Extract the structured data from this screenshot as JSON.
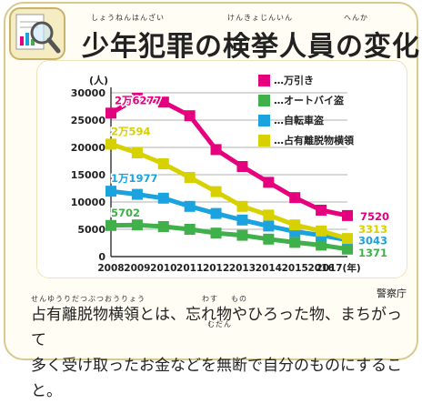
{
  "header": {
    "title": "少年犯罪の検挙人員の変化",
    "ruby_title_a": "しょうねんはんざい",
    "ruby_title_b": "けんきょじんいん",
    "ruby_title_c": "へんか",
    "icon": "magnifier-chart-icon"
  },
  "chart_data": {
    "type": "line",
    "title": "",
    "ylabel": "(人)",
    "xlabel": "(年)",
    "x": [
      2008,
      2009,
      2010,
      2011,
      2012,
      2013,
      2014,
      2015,
      2016,
      2017
    ],
    "x_last_label": "2017(年)",
    "ylim": [
      0,
      30000
    ],
    "yticks": [
      0,
      5000,
      10000,
      15000,
      20000,
      25000,
      30000
    ],
    "grid": true,
    "legend_position": "top-right",
    "source": "警察庁",
    "series": [
      {
        "name": "…万引き",
        "color": "#e5007e",
        "values": [
          26277,
          29000,
          28300,
          25800,
          19600,
          16500,
          13600,
          10800,
          8500,
          7520
        ],
        "start_label": "2万6277",
        "end_label": "7520"
      },
      {
        "name": "…オートバイ盗",
        "color": "#3fb04a",
        "values": [
          5702,
          5800,
          5500,
          5000,
          4300,
          3900,
          3200,
          2600,
          2100,
          1371
        ],
        "start_label": "5702",
        "end_label": "1371"
      },
      {
        "name": "…自転車盗",
        "color": "#1aa3de",
        "values": [
          11977,
          11400,
          10700,
          9200,
          7900,
          6700,
          5600,
          4600,
          3900,
          3043
        ],
        "start_label": "1万1977",
        "end_label": "3043"
      },
      {
        "name": "…占有離脱物横領",
        "color": "#d8d100",
        "values": [
          20594,
          19000,
          17000,
          14500,
          11900,
          9200,
          7600,
          5800,
          4700,
          3313
        ],
        "start_label": "2万594",
        "end_label": "3313"
      }
    ]
  },
  "footnote": {
    "line1": "占有離脱物横領とは、忘れ物やひろった物、まちがって",
    "line2": "多く受け取ったお金などを無断で自分のものにすること。",
    "ruby_senyu": "せんゆうりだつぶつおうりょう",
    "ruby_wasu": "わす",
    "ruby_mono": "もの",
    "ruby_mudan": "むだん"
  }
}
